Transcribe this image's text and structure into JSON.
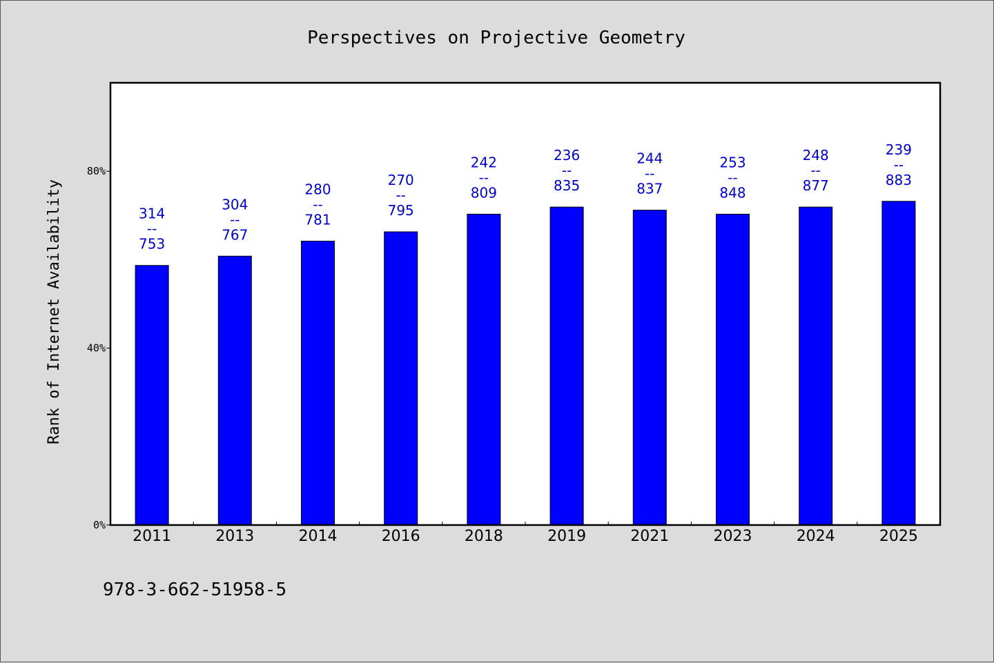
{
  "chart_data": {
    "type": "bar",
    "title": "Perspectives on Projective Geometry",
    "xlabel": "",
    "ylabel": "Rank of Internet Availability",
    "categories": [
      "2011",
      "2013",
      "2014",
      "2016",
      "2018",
      "2019",
      "2021",
      "2023",
      "2024",
      "2025"
    ],
    "values": [
      58.7,
      60.8,
      64.2,
      66.3,
      70.3,
      71.9,
      71.2,
      70.3,
      71.9,
      73.2
    ],
    "value_labels": [
      [
        "314",
        "--",
        "753"
      ],
      [
        "304",
        "--",
        "767"
      ],
      [
        "280",
        "--",
        "781"
      ],
      [
        "270",
        "--",
        "795"
      ],
      [
        "242",
        "--",
        "809"
      ],
      [
        "236",
        "--",
        "835"
      ],
      [
        "244",
        "--",
        "837"
      ],
      [
        "253",
        "--",
        "848"
      ],
      [
        "248",
        "--",
        "877"
      ],
      [
        "239",
        "--",
        "883"
      ]
    ],
    "ylim": [
      0,
      100
    ],
    "yticks": [
      0,
      40,
      80
    ],
    "ytick_labels": [
      "0%",
      "40%",
      "80%"
    ],
    "grid": false,
    "legend": "none",
    "bar_color": "#0000ff",
    "label_color": "#0000cc",
    "background_color": "#dcdcdc",
    "plot_background_color": "#ffffff"
  },
  "footer": {
    "isbn": "978-3-662-51958-5"
  }
}
